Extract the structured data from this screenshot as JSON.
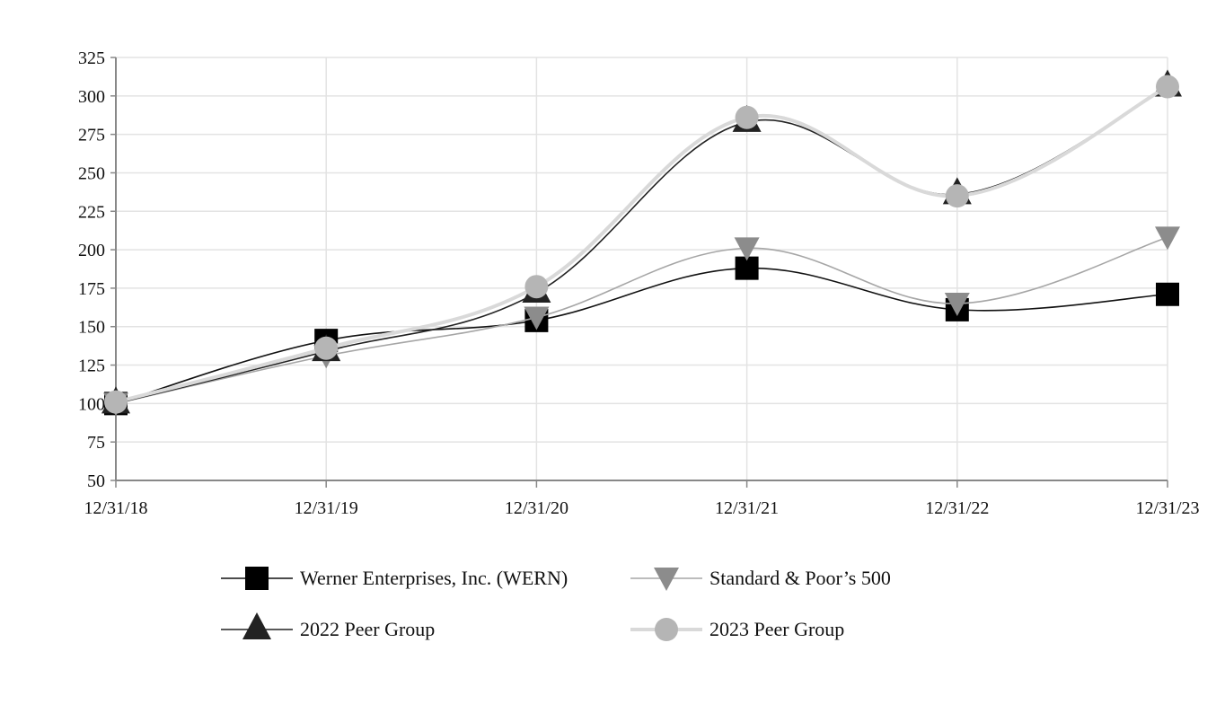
{
  "chart_data": {
    "type": "line",
    "title": "",
    "xlabel": "",
    "ylabel": "",
    "categories": [
      "12/31/18",
      "12/31/19",
      "12/31/20",
      "12/31/21",
      "12/31/22",
      "12/31/23"
    ],
    "ylim": [
      50,
      325
    ],
    "yticks": [
      "325",
      "300",
      "275",
      "250",
      "225",
      "200",
      "175",
      "150",
      "125",
      "100",
      "75",
      "50"
    ],
    "grid": true,
    "legend_position": "bottom",
    "series": [
      {
        "name": "Werner Enterprises, Inc. (WERN)",
        "values": [
          100,
          141,
          154,
          188,
          161,
          171
        ],
        "color": "#000000",
        "line_color": "#111111",
        "line_width": 1.6,
        "marker": "square"
      },
      {
        "name": "Standard & Poor’s 500",
        "values": [
          100,
          131,
          156,
          201,
          165,
          208
        ],
        "color": "#8c8c8c",
        "line_color": "#a6a6a6",
        "line_width": 1.6,
        "marker": "triangle-down"
      },
      {
        "name": "2022 Peer Group",
        "values": [
          100,
          134,
          172,
          283,
          236,
          306
        ],
        "color": "#222222",
        "line_color": "#222222",
        "line_width": 1.6,
        "marker": "triangle-up"
      },
      {
        "name": "2023 Peer Group",
        "values": [
          101,
          136,
          176,
          286,
          235,
          306
        ],
        "color": "#b5b5b5",
        "line_color": "#d9d9d9",
        "line_width": 4,
        "marker": "circle"
      }
    ]
  }
}
